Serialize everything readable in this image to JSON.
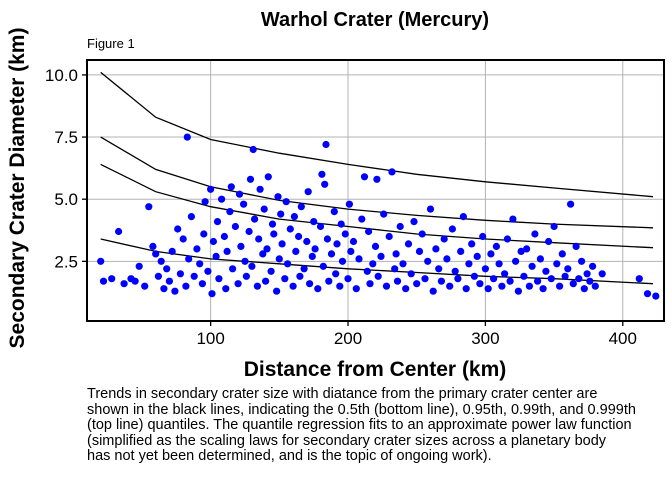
{
  "chart_data": {
    "type": "scatter",
    "title": "Warhol Crater (Mercury)",
    "subtitle": "Figure 1",
    "xlabel": "Distance from Center (km)",
    "ylabel": "Secondary Crater Diameter (km)",
    "xlim": [
      10,
      430
    ],
    "ylim": [
      0.1,
      10.6
    ],
    "xticks": [
      100,
      200,
      300,
      400
    ],
    "yticks": [
      2.5,
      5.0,
      7.5,
      10.0
    ],
    "xtick_labels": [
      "100",
      "200",
      "300",
      "400"
    ],
    "ytick_labels": [
      "2.5",
      "5.0",
      "7.5",
      "10.0"
    ],
    "grid": true,
    "point_color": "#0000ff",
    "line_color": "#000000",
    "points": [
      [
        20,
        2.5
      ],
      [
        22,
        1.7
      ],
      [
        28,
        1.8
      ],
      [
        33,
        3.7
      ],
      [
        37,
        1.6
      ],
      [
        42,
        1.8
      ],
      [
        45,
        1.7
      ],
      [
        48,
        2.3
      ],
      [
        52,
        1.5
      ],
      [
        55,
        4.7
      ],
      [
        58,
        3.1
      ],
      [
        60,
        2.8
      ],
      [
        62,
        1.9
      ],
      [
        64,
        2.5
      ],
      [
        66,
        1.4
      ],
      [
        68,
        2.2
      ],
      [
        70,
        1.7
      ],
      [
        72,
        2.9
      ],
      [
        74,
        1.3
      ],
      [
        76,
        3.8
      ],
      [
        78,
        2.0
      ],
      [
        80,
        3.4
      ],
      [
        82,
        1.5
      ],
      [
        83,
        7.5
      ],
      [
        84,
        2.6
      ],
      [
        86,
        4.3
      ],
      [
        88,
        1.9
      ],
      [
        90,
        3.0
      ],
      [
        92,
        2.4
      ],
      [
        94,
        1.6
      ],
      [
        95,
        3.6
      ],
      [
        96,
        4.9
      ],
      [
        98,
        2.1
      ],
      [
        100,
        5.4
      ],
      [
        101,
        1.2
      ],
      [
        102,
        3.3
      ],
      [
        104,
        2.7
      ],
      [
        105,
        4.1
      ],
      [
        106,
        1.8
      ],
      [
        108,
        5.0
      ],
      [
        110,
        3.5
      ],
      [
        111,
        1.4
      ],
      [
        112,
        2.9
      ],
      [
        114,
        4.5
      ],
      [
        115,
        5.5
      ],
      [
        116,
        2.2
      ],
      [
        118,
        3.9
      ],
      [
        120,
        1.6
      ],
      [
        121,
        5.2
      ],
      [
        122,
        3.1
      ],
      [
        124,
        4.8
      ],
      [
        125,
        2.5
      ],
      [
        126,
        1.9
      ],
      [
        128,
        3.7
      ],
      [
        129,
        5.8
      ],
      [
        130,
        2.3
      ],
      [
        131,
        7.0
      ],
      [
        132,
        4.2
      ],
      [
        134,
        1.5
      ],
      [
        135,
        3.4
      ],
      [
        136,
        5.4
      ],
      [
        138,
        2.8
      ],
      [
        139,
        4.6
      ],
      [
        140,
        1.7
      ],
      [
        141,
        3.0
      ],
      [
        142,
        5.9
      ],
      [
        144,
        2.1
      ],
      [
        145,
        4.0
      ],
      [
        146,
        3.6
      ],
      [
        148,
        1.3
      ],
      [
        149,
        5.1
      ],
      [
        150,
        2.6
      ],
      [
        151,
        4.4
      ],
      [
        152,
        3.2
      ],
      [
        154,
        1.8
      ],
      [
        155,
        4.9
      ],
      [
        156,
        2.4
      ],
      [
        158,
        3.8
      ],
      [
        160,
        1.5
      ],
      [
        161,
        4.3
      ],
      [
        162,
        2.9
      ],
      [
        164,
        3.5
      ],
      [
        165,
        1.9
      ],
      [
        166,
        4.7
      ],
      [
        168,
        2.2
      ],
      [
        170,
        3.3
      ],
      [
        171,
        5.3
      ],
      [
        172,
        1.6
      ],
      [
        174,
        2.7
      ],
      [
        175,
        4.1
      ],
      [
        176,
        3.0
      ],
      [
        178,
        1.4
      ],
      [
        180,
        3.9
      ],
      [
        181,
        6.0
      ],
      [
        182,
        2.3
      ],
      [
        183,
        5.6
      ],
      [
        184,
        7.2
      ],
      [
        185,
        3.4
      ],
      [
        186,
        1.7
      ],
      [
        188,
        2.8
      ],
      [
        190,
        4.5
      ],
      [
        191,
        2.0
      ],
      [
        192,
        3.2
      ],
      [
        194,
        1.5
      ],
      [
        195,
        4.0
      ],
      [
        196,
        2.5
      ],
      [
        198,
        3.6
      ],
      [
        200,
        1.8
      ],
      [
        201,
        4.8
      ],
      [
        202,
        2.9
      ],
      [
        204,
        3.3
      ],
      [
        206,
        1.4
      ],
      [
        208,
        2.6
      ],
      [
        210,
        4.2
      ],
      [
        212,
        5.9
      ],
      [
        214,
        2.1
      ],
      [
        215,
        3.7
      ],
      [
        216,
        1.6
      ],
      [
        218,
        2.4
      ],
      [
        220,
        3.1
      ],
      [
        221,
        5.8
      ],
      [
        222,
        1.9
      ],
      [
        224,
        2.7
      ],
      [
        226,
        4.4
      ],
      [
        228,
        1.5
      ],
      [
        230,
        3.5
      ],
      [
        232,
        6.1
      ],
      [
        234,
        2.2
      ],
      [
        235,
        2.8
      ],
      [
        236,
        1.7
      ],
      [
        238,
        3.9
      ],
      [
        240,
        2.4
      ],
      [
        242,
        1.4
      ],
      [
        244,
        3.2
      ],
      [
        246,
        2.0
      ],
      [
        248,
        4.1
      ],
      [
        250,
        1.6
      ],
      [
        252,
        2.9
      ],
      [
        254,
        3.6
      ],
      [
        256,
        1.8
      ],
      [
        258,
        2.5
      ],
      [
        260,
        4.6
      ],
      [
        262,
        1.3
      ],
      [
        264,
        3.0
      ],
      [
        266,
        2.2
      ],
      [
        268,
        1.7
      ],
      [
        270,
        3.4
      ],
      [
        272,
        2.6
      ],
      [
        274,
        1.5
      ],
      [
        276,
        3.8
      ],
      [
        278,
        2.1
      ],
      [
        280,
        1.8
      ],
      [
        282,
        2.9
      ],
      [
        284,
        4.3
      ],
      [
        286,
        1.4
      ],
      [
        288,
        2.4
      ],
      [
        290,
        3.2
      ],
      [
        292,
        1.9
      ],
      [
        294,
        2.7
      ],
      [
        296,
        1.6
      ],
      [
        298,
        3.5
      ],
      [
        300,
        2.2
      ],
      [
        302,
        1.4
      ],
      [
        304,
        2.8
      ],
      [
        306,
        1.8
      ],
      [
        308,
        3.1
      ],
      [
        310,
        2.4
      ],
      [
        312,
        1.5
      ],
      [
        314,
        2.0
      ],
      [
        316,
        3.4
      ],
      [
        318,
        1.7
      ],
      [
        320,
        4.2
      ],
      [
        322,
        2.5
      ],
      [
        324,
        1.3
      ],
      [
        326,
        2.9
      ],
      [
        328,
        1.9
      ],
      [
        330,
        3.0
      ],
      [
        332,
        1.5
      ],
      [
        334,
        2.3
      ],
      [
        336,
        3.6
      ],
      [
        338,
        1.7
      ],
      [
        340,
        2.6
      ],
      [
        342,
        1.4
      ],
      [
        344,
        2.1
      ],
      [
        346,
        3.3
      ],
      [
        348,
        1.8
      ],
      [
        350,
        3.9
      ],
      [
        352,
        2.4
      ],
      [
        354,
        1.5
      ],
      [
        356,
        2.8
      ],
      [
        358,
        1.9
      ],
      [
        360,
        2.2
      ],
      [
        362,
        4.8
      ],
      [
        364,
        1.6
      ],
      [
        366,
        3.1
      ],
      [
        368,
        1.8
      ],
      [
        370,
        2.5
      ],
      [
        372,
        1.4
      ],
      [
        374,
        2.0
      ],
      [
        376,
        1.7
      ],
      [
        378,
        2.3
      ],
      [
        380,
        1.5
      ],
      [
        385,
        2.0
      ],
      [
        412,
        1.8
      ],
      [
        418,
        1.2
      ],
      [
        424,
        1.1
      ]
    ],
    "lines": [
      {
        "x": [
          20,
          60,
          100,
          150,
          200,
          250,
          300,
          350,
          422
        ],
        "y": [
          3.4,
          2.9,
          2.6,
          2.4,
          2.2,
          2.05,
          1.9,
          1.8,
          1.6
        ]
      },
      {
        "x": [
          20,
          60,
          100,
          150,
          200,
          250,
          300,
          350,
          422
        ],
        "y": [
          6.4,
          5.3,
          4.7,
          4.2,
          3.9,
          3.6,
          3.4,
          3.25,
          3.05
        ]
      },
      {
        "x": [
          20,
          60,
          100,
          150,
          200,
          250,
          300,
          350,
          422
        ],
        "y": [
          7.5,
          6.2,
          5.5,
          4.95,
          4.6,
          4.35,
          4.15,
          4.0,
          3.85
        ]
      },
      {
        "x": [
          20,
          60,
          100,
          150,
          200,
          250,
          300,
          350,
          422
        ],
        "y": [
          10.1,
          8.3,
          7.4,
          6.85,
          6.4,
          6.0,
          5.7,
          5.45,
          5.1
        ]
      }
    ]
  },
  "caption": "Trends in secondary crater size with diatance from the primary crater center are\nshown in the black lines, indicating the 0.5th (bottom line), 0.95th, 0.99th, and 0.999th\n(top line) quantiles. The quantile regression fits to an approximate power law function\n(simplified as the scaling laws for secondary crater sizes across a planetary body\nhas not yet been determined, and is the topic of ongoing work)."
}
